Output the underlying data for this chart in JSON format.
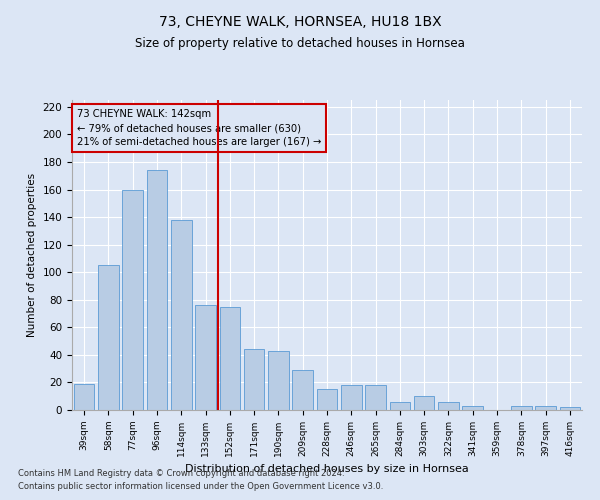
{
  "title": "73, CHEYNE WALK, HORNSEA, HU18 1BX",
  "subtitle": "Size of property relative to detached houses in Hornsea",
  "xlabel": "Distribution of detached houses by size in Hornsea",
  "ylabel": "Number of detached properties",
  "categories": [
    "39sqm",
    "58sqm",
    "77sqm",
    "96sqm",
    "114sqm",
    "133sqm",
    "152sqm",
    "171sqm",
    "190sqm",
    "209sqm",
    "228sqm",
    "246sqm",
    "265sqm",
    "284sqm",
    "303sqm",
    "322sqm",
    "341sqm",
    "359sqm",
    "378sqm",
    "397sqm",
    "416sqm"
  ],
  "values": [
    19,
    105,
    160,
    174,
    138,
    76,
    75,
    44,
    43,
    29,
    15,
    18,
    18,
    6,
    10,
    6,
    3,
    0,
    3,
    3,
    2
  ],
  "bar_color": "#b8cce4",
  "bar_edge_color": "#5b9bd5",
  "highlight_index": 6,
  "highlight_color": "#cc0000",
  "annotation_line1": "73 CHEYNE WALK: 142sqm",
  "annotation_line2": "← 79% of detached houses are smaller (630)",
  "annotation_line3": "21% of semi-detached houses are larger (167) →",
  "annotation_box_color": "#cc0000",
  "ylim": [
    0,
    225
  ],
  "yticks": [
    0,
    20,
    40,
    60,
    80,
    100,
    120,
    140,
    160,
    180,
    200,
    220
  ],
  "footer_line1": "Contains HM Land Registry data © Crown copyright and database right 2024.",
  "footer_line2": "Contains public sector information licensed under the Open Government Licence v3.0.",
  "background_color": "#dce6f5",
  "grid_color": "#ffffff"
}
